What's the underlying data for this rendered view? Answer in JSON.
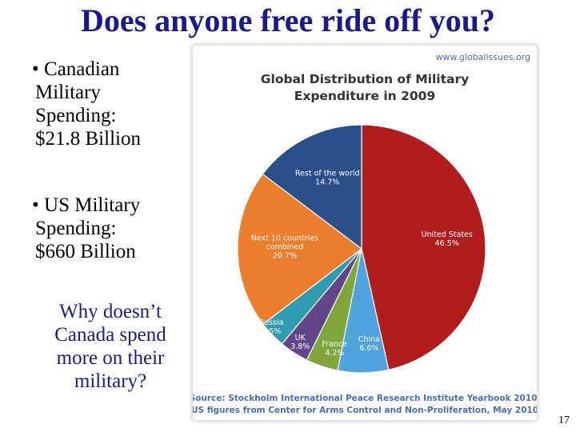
{
  "slide": {
    "title": "Does anyone free ride off you?",
    "bullets": [
      {
        "marker": "•",
        "lines": [
          "Canadian",
          "Military",
          "Spending:",
          "$21.8 Billion"
        ]
      },
      {
        "marker": "•",
        "lines": [
          "US Military",
          "Spending:",
          "$660 Billion"
        ]
      }
    ],
    "question_lines": [
      "Why doesn’t",
      "Canada spend",
      "more on their",
      "military?"
    ],
    "page_number": "17"
  },
  "chart_data": {
    "type": "pie",
    "website": "www.globalissues.org",
    "title_lines": [
      "Global Distribution of Military",
      "Expenditure in 2009"
    ],
    "start_angle_deg": 0,
    "slices": [
      {
        "name": "United States",
        "value_label": "46.5%",
        "value": 46.5,
        "color": "#b11d1d"
      },
      {
        "name": "China",
        "value_label": "6.6%",
        "value": 6.6,
        "color": "#4fa3dd"
      },
      {
        "name": "France",
        "value_label": "4.2%",
        "value": 4.2,
        "color": "#7ea63a"
      },
      {
        "name": "UK",
        "value_label": "3.8%",
        "value": 3.8,
        "color": "#63458a"
      },
      {
        "name": "Russia",
        "value_label": "3.5%",
        "value": 3.5,
        "color": "#2f9bb1"
      },
      {
        "name": "Next 10 countries combined",
        "value_label": "20.7%",
        "value": 20.7,
        "color": "#eb7d2c"
      },
      {
        "name": "Rest of the world",
        "value_label": "14.7%",
        "value": 14.7,
        "color": "#2a4f8a"
      }
    ],
    "source_lines": [
      "Source: Stockholm International Peace Research Institute Yearbook 2010,",
      "(US figures from Center for Arms Control and Non-Proliferation, May 2010)"
    ]
  }
}
